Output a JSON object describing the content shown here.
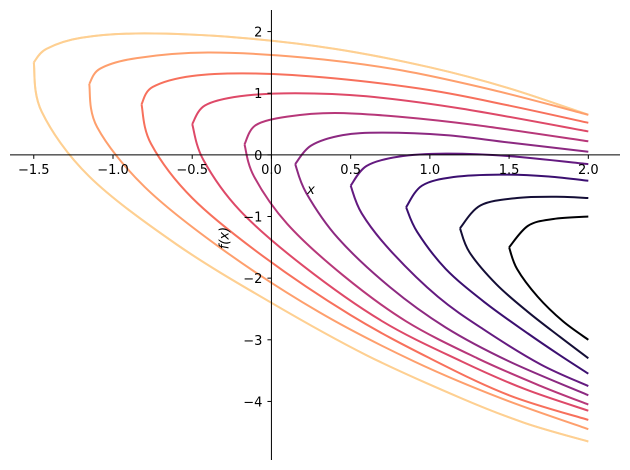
{
  "chart_data": {
    "type": "line",
    "title": "",
    "xlabel": "x",
    "ylabel": "f(x)",
    "xlim": [
      -1.65,
      2.2
    ],
    "ylim": [
      -4.95,
      2.35
    ],
    "grid": false,
    "spines": "centered at origin",
    "x_ticks": [
      -1.5,
      -1.0,
      -0.5,
      0.0,
      0.5,
      1.0,
      1.5,
      2.0
    ],
    "x_tick_labels": [
      "−1.5",
      "−1.0",
      "−0.5",
      "0.0",
      "0.5",
      "1.0",
      "1.5",
      "2.0"
    ],
    "y_ticks": [
      -4,
      -3,
      -2,
      -1,
      0,
      1,
      2
    ],
    "y_tick_labels": [
      "−4",
      "−3",
      "−2",
      "−1",
      "0",
      "1",
      "2"
    ],
    "curve_form": "x = (y - c)^2 - y, c = 0.5·(k − 1), k = 0..10",
    "series": [
      {
        "color": "#000004",
        "upper": [
          [
            1.5,
            -1.5
          ],
          [
            1.62,
            -1.15
          ],
          [
            1.78,
            -1.04
          ],
          [
            2.0,
            -1.0
          ]
        ],
        "lower": [
          [
            1.5,
            -1.5
          ],
          [
            1.55,
            -1.85
          ],
          [
            1.68,
            -2.3
          ],
          [
            1.84,
            -2.7
          ],
          [
            2.0,
            -3.0
          ]
        ]
      },
      {
        "color": "#140e36",
        "upper": [
          [
            1.19,
            -1.19
          ],
          [
            1.32,
            -0.82
          ],
          [
            1.55,
            -0.7
          ],
          [
            1.8,
            -0.68
          ],
          [
            2.0,
            -0.7
          ]
        ],
        "lower": [
          [
            1.19,
            -1.19
          ],
          [
            1.25,
            -1.58
          ],
          [
            1.42,
            -2.1
          ],
          [
            1.62,
            -2.55
          ],
          [
            1.82,
            -2.95
          ],
          [
            2.0,
            -3.3
          ]
        ]
      },
      {
        "color": "#3b0f70",
        "upper": [
          [
            0.85,
            -0.85
          ],
          [
            0.95,
            -0.5
          ],
          [
            1.15,
            -0.36
          ],
          [
            1.45,
            -0.32
          ],
          [
            1.75,
            -0.35
          ],
          [
            2.0,
            -0.42
          ]
        ],
        "lower": [
          [
            0.85,
            -0.85
          ],
          [
            0.92,
            -1.25
          ],
          [
            1.1,
            -1.85
          ],
          [
            1.35,
            -2.4
          ],
          [
            1.62,
            -2.9
          ],
          [
            1.82,
            -3.25
          ],
          [
            2.0,
            -3.55
          ]
        ]
      },
      {
        "color": "#641a80",
        "upper": [
          [
            0.5,
            -0.5
          ],
          [
            0.6,
            -0.18
          ],
          [
            0.8,
            -0.03
          ],
          [
            1.1,
            0.02
          ],
          [
            1.5,
            -0.02
          ],
          [
            2.0,
            -0.15
          ]
        ],
        "lower": [
          [
            0.5,
            -0.5
          ],
          [
            0.57,
            -0.95
          ],
          [
            0.75,
            -1.55
          ],
          [
            1.05,
            -2.3
          ],
          [
            1.35,
            -2.85
          ],
          [
            1.7,
            -3.4
          ],
          [
            2.0,
            -3.75
          ]
        ]
      },
      {
        "color": "#8c2981",
        "upper": [
          [
            0.15,
            -0.15
          ],
          [
            0.25,
            0.15
          ],
          [
            0.45,
            0.32
          ],
          [
            0.7,
            0.36
          ],
          [
            1.1,
            0.32
          ],
          [
            1.5,
            0.2
          ],
          [
            2.0,
            0.05
          ]
        ],
        "lower": [
          [
            0.15,
            -0.15
          ],
          [
            0.22,
            -0.62
          ],
          [
            0.42,
            -1.35
          ],
          [
            0.75,
            -2.15
          ],
          [
            1.1,
            -2.8
          ],
          [
            1.5,
            -3.35
          ],
          [
            2.0,
            -3.9
          ]
        ]
      },
      {
        "color": "#b73779",
        "upper": [
          [
            -0.17,
            0.17
          ],
          [
            -0.1,
            0.48
          ],
          [
            0.1,
            0.62
          ],
          [
            0.4,
            0.68
          ],
          [
            0.8,
            0.62
          ],
          [
            1.3,
            0.48
          ],
          [
            2.0,
            0.22
          ]
        ],
        "lower": [
          [
            -0.17,
            0.17
          ],
          [
            -0.11,
            -0.35
          ],
          [
            0.1,
            -1.12
          ],
          [
            0.45,
            -1.95
          ],
          [
            0.85,
            -2.7
          ],
          [
            1.3,
            -3.3
          ],
          [
            1.7,
            -3.75
          ],
          [
            2.0,
            -4.05
          ]
        ]
      },
      {
        "color": "#de4968",
        "upper": [
          [
            -0.5,
            0.5
          ],
          [
            -0.42,
            0.8
          ],
          [
            -0.2,
            0.95
          ],
          [
            0.15,
            1.0
          ],
          [
            0.6,
            0.95
          ],
          [
            1.2,
            0.75
          ],
          [
            2.0,
            0.38
          ]
        ],
        "lower": [
          [
            -0.5,
            0.5
          ],
          [
            -0.43,
            -0.08
          ],
          [
            -0.2,
            -0.9
          ],
          [
            0.2,
            -1.8
          ],
          [
            0.7,
            -2.7
          ],
          [
            1.2,
            -3.35
          ],
          [
            1.6,
            -3.8
          ],
          [
            2.0,
            -4.15
          ]
        ]
      },
      {
        "color": "#f7705c",
        "upper": [
          [
            -0.82,
            0.82
          ],
          [
            -0.75,
            1.1
          ],
          [
            -0.5,
            1.28
          ],
          [
            -0.1,
            1.32
          ],
          [
            0.4,
            1.24
          ],
          [
            1.0,
            1.05
          ],
          [
            1.5,
            0.8
          ],
          [
            2.0,
            0.52
          ]
        ],
        "lower": [
          [
            -0.82,
            0.82
          ],
          [
            -0.76,
            0.18
          ],
          [
            -0.5,
            -0.7
          ],
          [
            -0.05,
            -1.65
          ],
          [
            0.5,
            -2.6
          ],
          [
            1.0,
            -3.3
          ],
          [
            1.5,
            -3.9
          ],
          [
            2.0,
            -4.3
          ]
        ]
      },
      {
        "color": "#fe9f6d",
        "upper": [
          [
            -1.15,
            1.15
          ],
          [
            -1.08,
            1.4
          ],
          [
            -0.85,
            1.57
          ],
          [
            -0.4,
            1.66
          ],
          [
            0.2,
            1.58
          ],
          [
            0.8,
            1.38
          ],
          [
            1.4,
            1.05
          ],
          [
            2.0,
            0.65
          ]
        ],
        "lower": [
          [
            -1.15,
            1.15
          ],
          [
            -1.1,
            0.45
          ],
          [
            -0.8,
            -0.52
          ],
          [
            -0.3,
            -1.55
          ],
          [
            0.3,
            -2.55
          ],
          [
            0.9,
            -3.35
          ],
          [
            1.45,
            -3.95
          ],
          [
            2.0,
            -4.45
          ]
        ]
      },
      {
        "color": "#fecf92",
        "upper": [
          [
            -1.5,
            1.5
          ],
          [
            -1.42,
            1.72
          ],
          [
            -1.2,
            1.9
          ],
          [
            -0.8,
            1.97
          ],
          [
            -0.2,
            1.9
          ],
          [
            0.4,
            1.72
          ],
          [
            1.0,
            1.42
          ],
          [
            1.5,
            1.08
          ],
          [
            2.0,
            0.65
          ]
        ],
        "lower": [
          [
            -1.5,
            1.5
          ],
          [
            -1.45,
            0.7
          ],
          [
            -1.15,
            -0.35
          ],
          [
            -0.6,
            -1.45
          ],
          [
            0.0,
            -2.4
          ],
          [
            0.6,
            -3.25
          ],
          [
            1.2,
            -3.95
          ],
          [
            1.6,
            -4.35
          ],
          [
            2.0,
            -4.65
          ]
        ]
      },
      {
        "color": "#fde3a7",
        "upper": [
          [
            -1.5,
            1.5
          ],
          [
            -1.42,
            1.72
          ],
          [
            -1.2,
            1.9
          ],
          [
            -0.8,
            1.97
          ],
          [
            -0.2,
            1.9
          ],
          [
            0.4,
            1.72
          ],
          [
            1.0,
            1.42
          ],
          [
            1.5,
            1.08
          ],
          [
            2.0,
            0.65
          ]
        ],
        "lower": [
          [
            -1.5,
            1.5
          ],
          [
            -1.45,
            0.7
          ],
          [
            -1.15,
            -0.35
          ],
          [
            -0.6,
            -1.45
          ],
          [
            0.0,
            -2.4
          ],
          [
            0.6,
            -3.25
          ],
          [
            1.2,
            -3.95
          ],
          [
            1.6,
            -4.35
          ],
          [
            2.0,
            -4.65
          ]
        ]
      }
    ]
  }
}
